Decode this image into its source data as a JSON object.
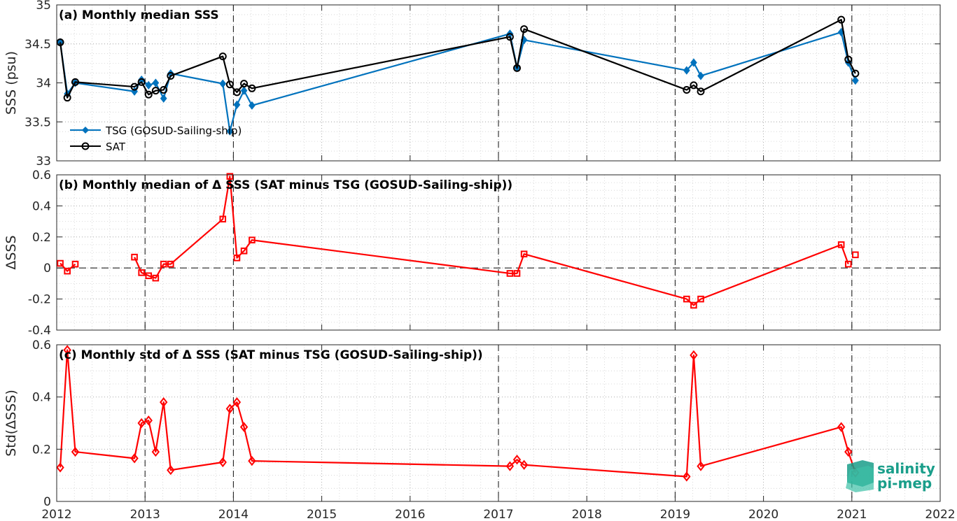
{
  "chart_data": [
    {
      "type": "line",
      "title": "(a) Monthly median SSS",
      "ylabel": "SSS (psu)",
      "xlim": [
        2012,
        2022
      ],
      "ylim": [
        33,
        35
      ],
      "yticks": [
        33,
        33.5,
        34,
        34.5,
        35
      ],
      "yticklabels": [
        "33",
        "33.5",
        "34",
        "34.5",
        "35"
      ],
      "grid": true,
      "legend": "bottom-left",
      "series": [
        {
          "name": "TSG (GOSUD-Sailing-ship)",
          "color": "#0072bd",
          "marker": "diamond",
          "x": [
            2012.04,
            2012.12,
            2012.21,
            2012.88,
            2012.96,
            2013.04,
            2013.12,
            2013.21,
            2013.29,
            2013.88,
            2013.96,
            2014.04,
            2014.12,
            2014.21,
            2017.13,
            2017.21,
            2017.29,
            2019.13,
            2019.21,
            2019.29,
            2020.88,
            2020.96,
            2021.04
          ],
          "y": [
            34.52,
            33.86,
            34.0,
            33.89,
            34.04,
            33.97,
            34.0,
            33.8,
            34.12,
            33.99,
            33.38,
            33.72,
            33.9,
            33.71,
            34.63,
            34.2,
            34.55,
            34.16,
            34.26,
            34.09,
            34.65,
            34.26,
            34.03
          ]
        },
        {
          "name": "SAT",
          "color": "#000000",
          "marker": "circle",
          "x": [
            2012.04,
            2012.12,
            2012.21,
            2012.88,
            2012.96,
            2013.04,
            2013.12,
            2013.21,
            2013.29,
            2013.88,
            2013.96,
            2014.04,
            2014.12,
            2014.21,
            2017.13,
            2017.21,
            2017.29,
            2019.13,
            2019.21,
            2019.29,
            2020.88,
            2020.96,
            2021.04
          ],
          "y": [
            34.52,
            33.81,
            34.01,
            33.95,
            34.01,
            33.85,
            33.9,
            33.91,
            34.09,
            34.34,
            33.98,
            33.88,
            33.99,
            33.93,
            34.59,
            34.19,
            34.69,
            33.91,
            33.97,
            33.89,
            34.81,
            34.3,
            34.12
          ]
        }
      ]
    },
    {
      "type": "line",
      "title": "(b) Monthly median of Δ SSS (SAT minus TSG (GOSUD-Sailing-ship))",
      "ylabel": "ΔSSS",
      "xlim": [
        2012,
        2022
      ],
      "ylim": [
        -0.4,
        0.6
      ],
      "yticks": [
        -0.4,
        -0.2,
        0,
        0.2,
        0.4,
        0.6
      ],
      "yticklabels": [
        "-0.4",
        "-0.2",
        "0",
        "0.2",
        "0.4",
        "0.6"
      ],
      "grid": true,
      "reference_line": 0,
      "series": [
        {
          "color": "#ff0000",
          "marker": "square",
          "x": [
            2012.04,
            2012.12,
            2012.21,
            2012.88,
            2012.96,
            2013.04,
            2013.12,
            2013.21,
            2013.29,
            2013.88,
            2013.96,
            2014.04,
            2014.12,
            2014.21,
            2017.13,
            2017.21,
            2017.29,
            2019.13,
            2019.21,
            2019.29,
            2020.88,
            2020.96,
            2021.04
          ],
          "y": [
            0.03,
            -0.02,
            0.025,
            0.07,
            -0.03,
            -0.05,
            -0.065,
            0.025,
            0.025,
            0.315,
            0.59,
            0.065,
            0.11,
            0.18,
            -0.035,
            -0.035,
            0.09,
            -0.2,
            -0.24,
            -0.2,
            0.15,
            0.025,
            0.085
          ],
          "breaks_after_x": [
            2012.21,
            2020.96
          ]
        }
      ]
    },
    {
      "type": "line",
      "title": "(c) Monthly std of Δ SSS (SAT minus TSG (GOSUD-Sailing-ship))",
      "ylabel": "Std(ΔSSS)",
      "xlim": [
        2012,
        2022
      ],
      "ylim": [
        0,
        0.6
      ],
      "yticks": [
        0,
        0.2,
        0.4,
        0.6
      ],
      "yticklabels": [
        "0",
        "0.2",
        "0.4",
        "0.6"
      ],
      "xticks": [
        2012,
        2013,
        2014,
        2015,
        2016,
        2017,
        2018,
        2019,
        2020,
        2021,
        2022
      ],
      "xticklabels": [
        "2012",
        "2013",
        "2014",
        "2015",
        "2016",
        "2017",
        "2018",
        "2019",
        "2020",
        "2021",
        "2022"
      ],
      "grid": true,
      "series": [
        {
          "color": "#ff0000",
          "marker": "diamond",
          "x": [
            2012.04,
            2012.12,
            2012.21,
            2012.88,
            2012.96,
            2013.04,
            2013.12,
            2013.21,
            2013.29,
            2013.88,
            2013.96,
            2014.04,
            2014.12,
            2014.21,
            2017.13,
            2017.21,
            2017.29,
            2019.13,
            2019.21,
            2019.29,
            2020.88,
            2020.96,
            2021.04
          ],
          "y": [
            0.13,
            0.58,
            0.19,
            0.165,
            0.3,
            0.31,
            0.19,
            0.38,
            0.12,
            0.15,
            0.355,
            0.38,
            0.285,
            0.155,
            0.135,
            0.16,
            0.14,
            0.095,
            0.56,
            0.135,
            0.285,
            0.19,
            0.11
          ]
        }
      ]
    }
  ],
  "year_lines": [
    2013,
    2014,
    2017,
    2019,
    2021
  ],
  "logo": {
    "line1": "salinity",
    "line2": "pi-mep"
  }
}
